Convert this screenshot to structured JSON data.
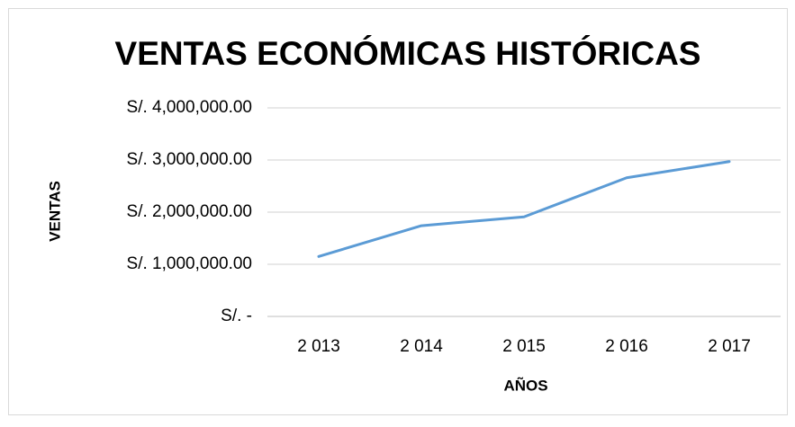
{
  "chart_data": {
    "type": "line",
    "title": "VENTAS ECONÓMICAS HISTÓRICAS",
    "x_label": "AÑOS",
    "y_label": "VENTAS",
    "categories": [
      "2 013",
      "2 014",
      "2 015",
      "2 016",
      "2 017"
    ],
    "series": [
      {
        "name": "VENTAS",
        "color": "#5b9bd5",
        "values": [
          1150000,
          1740000,
          1910000,
          2660000,
          2970000
        ]
      }
    ],
    "ylim": [
      0,
      4000000
    ],
    "yticks": [
      {
        "value": 0,
        "label": "S/. -"
      },
      {
        "value": 1000000,
        "label": "S/. 1,000,000.00"
      },
      {
        "value": 2000000,
        "label": "S/. 2,000,000.00"
      },
      {
        "value": 3000000,
        "label": "S/. 3,000,000.00"
      },
      {
        "value": 4000000,
        "label": "S/. 4,000,000.00"
      }
    ],
    "grid": true
  }
}
